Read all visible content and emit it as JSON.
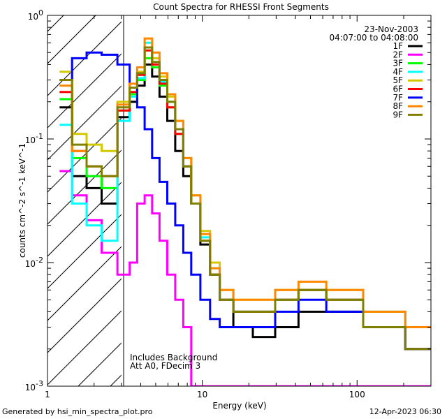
{
  "footer": {
    "generated_by": "Generated by hsi_min_spectra_plot.pro",
    "print_time": "12-Apr-2023 06:30"
  },
  "chart_data": {
    "type": "line",
    "title": "Count Spectra for RHESSI Front Segments",
    "xlabel": "Energy (keV)",
    "ylabel": "counts cm^-2 s^-1 keV^-1",
    "x_scale": "log",
    "y_scale": "log",
    "xlim": [
      1,
      300
    ],
    "ylim": [
      0.001,
      1
    ],
    "x_ticks": [
      {
        "value": 1,
        "label": "1"
      },
      {
        "value": 10,
        "label": "10"
      },
      {
        "value": 100,
        "label": "100"
      }
    ],
    "y_ticks": [
      {
        "value": 1,
        "base": "10",
        "exp": "0"
      },
      {
        "value": 0.1,
        "base": "10",
        "exp": "-1"
      },
      {
        "value": 0.01,
        "base": "10",
        "exp": "-2"
      },
      {
        "value": 0.001,
        "base": "10",
        "exp": "-3"
      }
    ],
    "header_date": "23-Nov-2003",
    "header_time": "04:07:00 to 04:08:00",
    "annotations": [
      "Includes Background",
      "Att A0, FDecim 3"
    ],
    "excluded_region": {
      "from": 1,
      "to": 3,
      "style": "hatched"
    },
    "legend_position": "top-right",
    "series": [
      {
        "name": "1F",
        "color": "#000000",
        "values": [
          0.18,
          0.05,
          0.04,
          0.03,
          0.15,
          0.2,
          0.27,
          0.4,
          0.32,
          0.22,
          0.14,
          0.08,
          0.05,
          0.03,
          0.014,
          0.008,
          0.005,
          0.003,
          0.0025,
          0.003,
          0.004,
          0.004,
          0.003,
          0.002
        ]
      },
      {
        "name": "2F",
        "color": "#ff00ff",
        "values": [
          0.055,
          0.035,
          0.022,
          0.012,
          0.008,
          0.01,
          0.03,
          0.035,
          0.025,
          0.015,
          0.008,
          0.005,
          0.003,
          0.001,
          0.001,
          0.001,
          0.001,
          0.001,
          0.001,
          0.001,
          0.001,
          0.001,
          0.001,
          0.001
        ]
      },
      {
        "name": "3F",
        "color": "#00ff00",
        "values": [
          0.21,
          0.07,
          0.05,
          0.04,
          0.17,
          0.23,
          0.3,
          0.45,
          0.38,
          0.27,
          0.18,
          0.11,
          0.06,
          0.03,
          0.015,
          0.008,
          0.005,
          0.004,
          0.004,
          0.005,
          0.006,
          0.005,
          0.003,
          0.002
        ]
      },
      {
        "name": "4F",
        "color": "#00ffff",
        "values": [
          0.13,
          0.03,
          0.02,
          0.015,
          0.14,
          0.22,
          0.31,
          0.6,
          0.42,
          0.29,
          0.2,
          0.12,
          0.06,
          0.03,
          0.016,
          0.009,
          0.005,
          0.004,
          0.004,
          0.005,
          0.006,
          0.005,
          0.004,
          0.002
        ]
      },
      {
        "name": "5F",
        "color": "#d4c800",
        "values": [
          0.35,
          0.11,
          0.09,
          0.08,
          0.2,
          0.26,
          0.35,
          0.55,
          0.45,
          0.32,
          0.22,
          0.14,
          0.07,
          0.035,
          0.018,
          0.01,
          0.006,
          0.005,
          0.005,
          0.006,
          0.006,
          0.006,
          0.004,
          0.003
        ]
      },
      {
        "name": "6F",
        "color": "#ff0000",
        "values": [
          0.24,
          0.08,
          0.06,
          0.05,
          0.17,
          0.24,
          0.33,
          0.52,
          0.4,
          0.28,
          0.18,
          0.11,
          0.06,
          0.03,
          0.015,
          0.008,
          0.005,
          0.004,
          0.004,
          0.005,
          0.006,
          0.005,
          0.003,
          0.002
        ]
      },
      {
        "name": "7F",
        "color": "#0000ff",
        "values": [
          0.3,
          0.45,
          0.5,
          0.48,
          0.4,
          0.26,
          0.18,
          0.12,
          0.07,
          0.045,
          0.03,
          0.02,
          0.012,
          0.008,
          0.005,
          0.0035,
          0.003,
          0.003,
          0.003,
          0.004,
          0.005,
          0.004,
          0.003,
          0.002
        ]
      },
      {
        "name": "8F",
        "color": "#ff8800",
        "values": [
          0.27,
          0.08,
          0.06,
          0.05,
          0.19,
          0.28,
          0.38,
          0.65,
          0.5,
          0.34,
          0.23,
          0.14,
          0.07,
          0.035,
          0.017,
          0.009,
          0.006,
          0.005,
          0.005,
          0.006,
          0.007,
          0.006,
          0.004,
          0.003
        ]
      },
      {
        "name": "9F",
        "color": "#808000",
        "values": [
          0.3,
          0.09,
          0.06,
          0.05,
          0.18,
          0.26,
          0.34,
          0.55,
          0.42,
          0.3,
          0.2,
          0.12,
          0.06,
          0.03,
          0.015,
          0.008,
          0.005,
          0.004,
          0.004,
          0.005,
          0.006,
          0.005,
          0.003,
          0.002
        ]
      }
    ],
    "x": [
      1.3,
      1.6,
      2.0,
      2.5,
      3.2,
      3.6,
      4.0,
      4.5,
      5.0,
      5.6,
      6.3,
      7.1,
      8.0,
      9.0,
      10.5,
      12.0,
      14.0,
      18.0,
      25.0,
      35.0,
      50.0,
      80.0,
      150.0,
      280.0
    ]
  }
}
